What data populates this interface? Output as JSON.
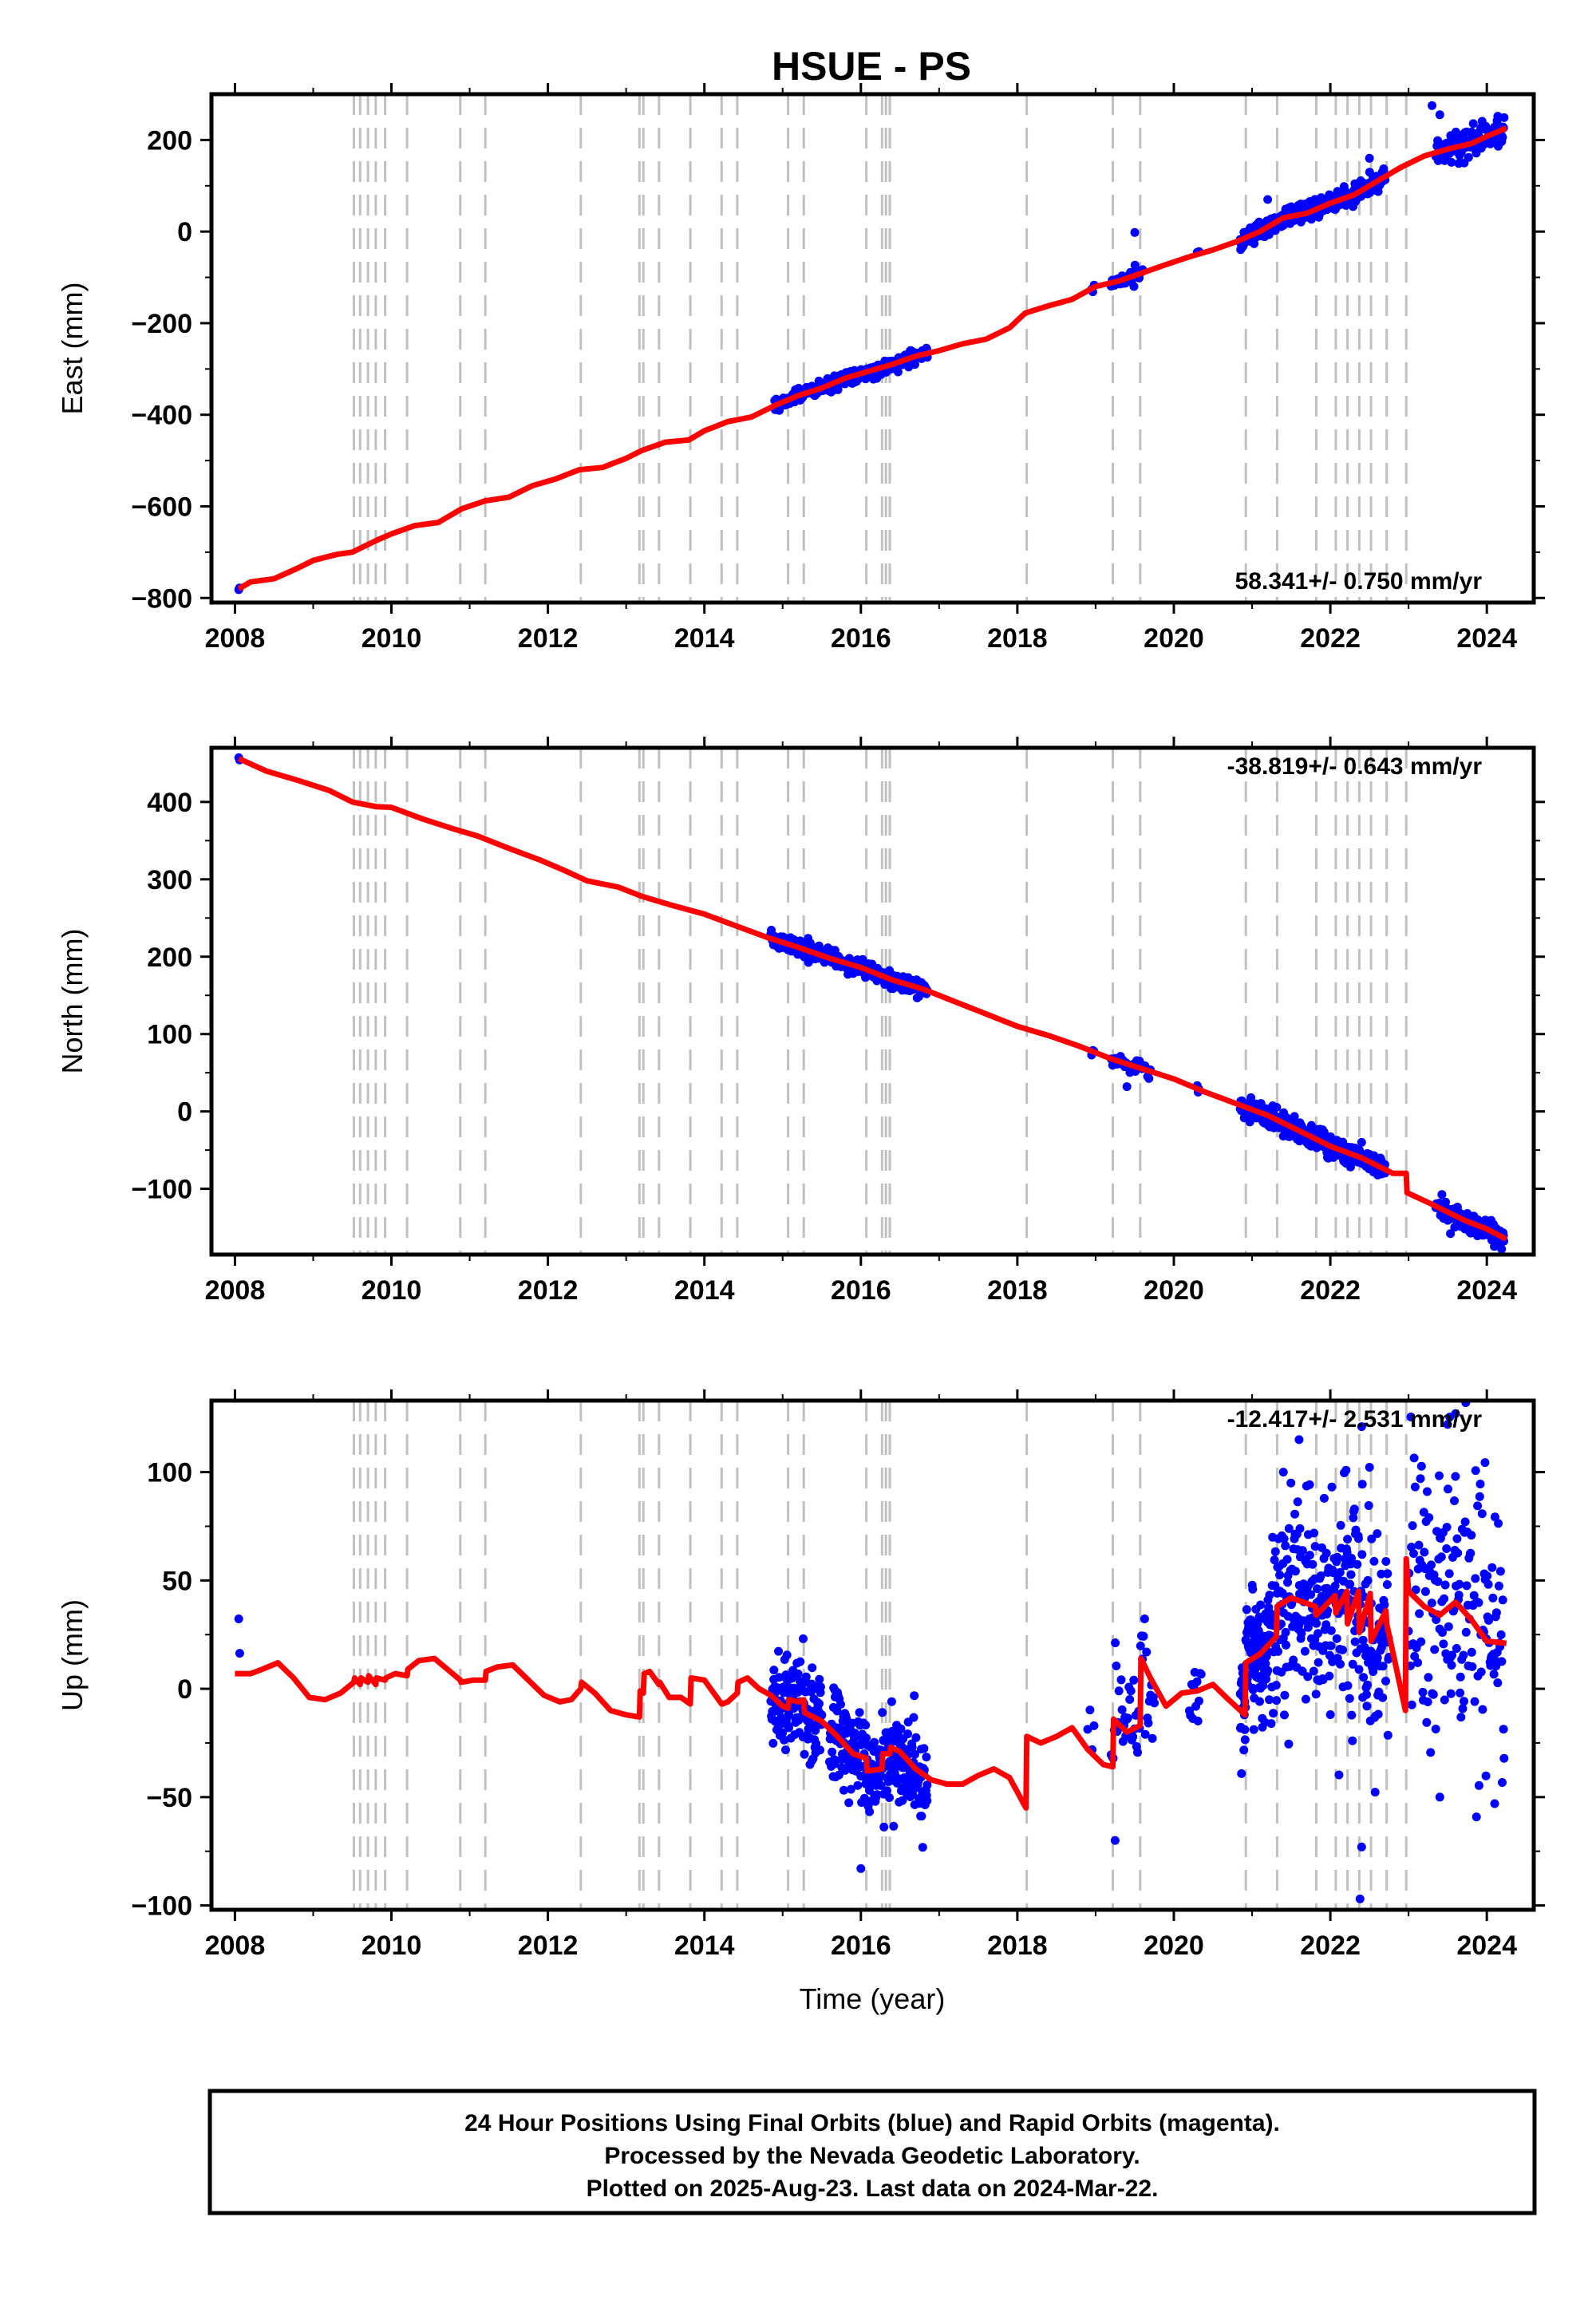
{
  "figure": {
    "title": "HSUE - PS",
    "xlabel": "Time (year)",
    "footer": [
      "24 Hour Positions Using Final Orbits (blue) and Rapid Orbits (magenta).",
      "Processed by the Nevada Geodetic Laboratory.",
      "Plotted on 2025-Aug-23. Last data on 2024-Mar-22."
    ],
    "colors": {
      "data": "#0000ff",
      "model": "#ff0000",
      "event_lines": "#c0c0c0",
      "frame": "#000000"
    }
  },
  "chart_data": [
    {
      "type": "scatter",
      "id": "east",
      "ylabel": "East (mm)",
      "rate": "58.341+/- 0.750 mm/yr",
      "xlim": [
        2007.7,
        2024.6
      ],
      "ylim": [
        -810,
        300
      ],
      "yticks": [
        -800,
        -600,
        -400,
        -200,
        0,
        200
      ],
      "yticklabels": [
        "−800",
        "−600",
        "−400",
        "−200",
        "0",
        "200"
      ],
      "xticks": [
        2008,
        2010,
        2012,
        2014,
        2016,
        2018,
        2020,
        2022,
        2024
      ],
      "event_lines": [
        2009.52,
        2009.6,
        2009.7,
        2009.8,
        2009.92,
        2010.2,
        2010.88,
        2011.2,
        2012.42,
        2013.17,
        2013.22,
        2013.42,
        2013.82,
        2014.22,
        2014.42,
        2015.07,
        2015.27,
        2016.07,
        2016.27,
        2016.32,
        2016.37,
        2018.12,
        2019.22,
        2019.57,
        2020.92,
        2021.32,
        2021.82,
        2022.07,
        2022.22,
        2022.37,
        2022.52,
        2022.72,
        2022.97
      ],
      "series": [
        {
          "kind": "model",
          "x": [
            2008.05,
            2008.2,
            2008.5,
            2008.8,
            2009.0,
            2009.3,
            2009.5,
            2009.8,
            2010.0,
            2010.3,
            2010.6,
            2010.9,
            2011.2,
            2011.5,
            2011.8,
            2012.1,
            2012.4,
            2012.7,
            2013.0,
            2013.2,
            2013.5,
            2013.8,
            2014.0,
            2014.3,
            2014.6,
            2014.9,
            2015.2,
            2015.5,
            2015.8,
            2016.1,
            2016.4,
            2016.7,
            2017.0,
            2017.3,
            2017.6,
            2017.9,
            2018.1,
            2018.4,
            2018.7,
            2019.0,
            2019.3,
            2019.6,
            2019.9,
            2020.2,
            2020.5,
            2020.8,
            2021.1,
            2021.4,
            2021.7,
            2022.0,
            2022.3,
            2022.6,
            2022.9,
            2023.2,
            2023.5,
            2023.8,
            2024.0,
            2024.25
          ],
          "y": [
            -780,
            -765,
            -758,
            -735,
            -718,
            -705,
            -700,
            -675,
            -660,
            -642,
            -635,
            -605,
            -588,
            -580,
            -555,
            -540,
            -520,
            -515,
            -495,
            -478,
            -460,
            -455,
            -435,
            -415,
            -405,
            -380,
            -358,
            -342,
            -320,
            -305,
            -290,
            -272,
            -260,
            -245,
            -235,
            -210,
            -178,
            -162,
            -148,
            -120,
            -108,
            -90,
            -72,
            -55,
            -40,
            -22,
            0,
            30,
            40,
            62,
            80,
            110,
            140,
            165,
            180,
            192,
            208,
            226
          ]
        },
        {
          "kind": "observed",
          "segments": [
            {
              "x0": 2008.05,
              "x1": 2008.06,
              "n": 2,
              "sd": 2,
              "seed": 11
            },
            {
              "x0": 2014.9,
              "x1": 2016.85,
              "n": 320,
              "sd": 8,
              "seed": 12
            },
            {
              "x0": 2018.95,
              "x1": 2018.98,
              "n": 3,
              "sd": 6,
              "seed": 13
            },
            {
              "x0": 2019.2,
              "x1": 2019.6,
              "n": 30,
              "sd": 8,
              "seed": 14
            },
            {
              "x0": 2020.3,
              "x1": 2020.32,
              "n": 3,
              "sd": 6,
              "seed": 15
            },
            {
              "x0": 2020.85,
              "x1": 2022.7,
              "n": 380,
              "sd": 10,
              "seed": 16
            },
            {
              "x0": 2023.35,
              "x1": 2024.22,
              "n": 150,
              "sd": 14,
              "seed": 17
            }
          ],
          "outliers": [
            [
              2019.5,
              -2
            ],
            [
              2023.3,
              275
            ],
            [
              2023.4,
              255
            ],
            [
              2021.2,
              70
            ],
            [
              2022.5,
              160
            ]
          ]
        }
      ]
    },
    {
      "type": "scatter",
      "id": "north",
      "ylabel": "North (mm)",
      "rate": "-38.819+/- 0.643 mm/yr",
      "xlim": [
        2007.7,
        2024.6
      ],
      "ylim": [
        -185,
        470
      ],
      "yticks": [
        -100,
        0,
        100,
        200,
        300,
        400
      ],
      "yticklabels": [
        "−100",
        "0",
        "100",
        "200",
        "300",
        "400"
      ],
      "xticks": [
        2008,
        2010,
        2012,
        2014,
        2016,
        2018,
        2020,
        2022,
        2024
      ],
      "event_lines": [
        2009.52,
        2009.6,
        2009.7,
        2009.8,
        2009.92,
        2010.2,
        2010.88,
        2011.2,
        2012.42,
        2013.17,
        2013.22,
        2013.42,
        2013.82,
        2014.22,
        2014.42,
        2015.07,
        2015.27,
        2016.07,
        2016.27,
        2016.32,
        2016.37,
        2018.12,
        2019.22,
        2019.57,
        2020.92,
        2021.32,
        2021.82,
        2022.07,
        2022.22,
        2022.37,
        2022.52,
        2022.72,
        2022.97
      ],
      "series": [
        {
          "kind": "model",
          "x": [
            2008.05,
            2008.4,
            2008.8,
            2009.2,
            2009.5,
            2009.8,
            2010.0,
            2010.4,
            2010.8,
            2011.1,
            2011.5,
            2011.9,
            2012.2,
            2012.5,
            2012.9,
            2013.2,
            2013.6,
            2014.0,
            2014.4,
            2014.8,
            2015.2,
            2015.6,
            2016.0,
            2016.4,
            2016.8,
            2017.2,
            2017.6,
            2018.0,
            2018.4,
            2018.8,
            2019.2,
            2019.6,
            2020.0,
            2020.4,
            2020.8,
            2021.2,
            2021.6,
            2022.0,
            2022.4,
            2022.8,
            2022.97,
            2022.98,
            2023.3,
            2023.7,
            2024.0,
            2024.25
          ],
          "y": [
            456,
            440,
            428,
            415,
            400,
            394,
            393,
            378,
            365,
            356,
            340,
            325,
            312,
            298,
            290,
            278,
            266,
            255,
            240,
            225,
            212,
            198,
            186,
            170,
            158,
            142,
            126,
            110,
            98,
            84,
            68,
            55,
            42,
            25,
            10,
            -5,
            -25,
            -45,
            -60,
            -80,
            -80,
            -105,
            -120,
            -140,
            -152,
            -165
          ]
        },
        {
          "kind": "observed",
          "segments": [
            {
              "x0": 2008.05,
              "x1": 2008.06,
              "n": 2,
              "sd": 2,
              "seed": 21
            },
            {
              "x0": 2014.85,
              "x1": 2016.85,
              "n": 320,
              "sd": 5,
              "seed": 22
            },
            {
              "x0": 2018.95,
              "x1": 2018.98,
              "n": 3,
              "sd": 4,
              "seed": 23
            },
            {
              "x0": 2019.2,
              "x1": 2019.7,
              "n": 30,
              "sd": 6,
              "seed": 24
            },
            {
              "x0": 2020.3,
              "x1": 2020.32,
              "n": 3,
              "sd": 4,
              "seed": 25
            },
            {
              "x0": 2020.85,
              "x1": 2022.7,
              "n": 380,
              "sd": 7,
              "seed": 26
            },
            {
              "x0": 2023.35,
              "x1": 2024.22,
              "n": 150,
              "sd": 7,
              "seed": 27
            }
          ],
          "outliers": [
            [
              2019.4,
              32
            ],
            [
              2022.4,
              -40
            ]
          ]
        }
      ]
    },
    {
      "type": "scatter",
      "id": "up",
      "ylabel": "Up (mm)",
      "rate": "-12.417+/- 2.531 mm/yr",
      "xlim": [
        2007.7,
        2024.6
      ],
      "ylim": [
        -102,
        133
      ],
      "yticks": [
        -100,
        -50,
        0,
        50,
        100
      ],
      "yticklabels": [
        "−100",
        "−50",
        "0",
        "50",
        "100"
      ],
      "xticks": [
        2008,
        2010,
        2012,
        2014,
        2016,
        2018,
        2020,
        2022,
        2024
      ],
      "event_lines": [
        2009.52,
        2009.6,
        2009.7,
        2009.8,
        2009.92,
        2010.2,
        2010.88,
        2011.2,
        2012.42,
        2013.17,
        2013.22,
        2013.42,
        2013.82,
        2014.22,
        2014.42,
        2015.07,
        2015.27,
        2016.07,
        2016.27,
        2016.32,
        2016.37,
        2018.12,
        2019.22,
        2019.57,
        2020.92,
        2021.32,
        2021.82,
        2022.07,
        2022.22,
        2022.37,
        2022.52,
        2022.72,
        2022.97
      ],
      "series": [
        {
          "kind": "model",
          "x": [
            2008.0,
            2008.2,
            2008.35,
            2008.55,
            2008.75,
            2008.95,
            2009.15,
            2009.35,
            2009.52,
            2009.53,
            2009.6,
            2009.61,
            2009.7,
            2009.71,
            2009.8,
            2009.81,
            2009.92,
            2009.93,
            2010.05,
            2010.2,
            2010.21,
            2010.35,
            2010.55,
            2010.75,
            2010.88,
            2010.89,
            2011.05,
            2011.2,
            2011.21,
            2011.35,
            2011.55,
            2011.75,
            2011.95,
            2012.15,
            2012.3,
            2012.42,
            2012.43,
            2012.6,
            2012.8,
            2013.0,
            2013.17,
            2013.18,
            2013.22,
            2013.23,
            2013.3,
            2013.42,
            2013.43,
            2013.55,
            2013.7,
            2013.82,
            2013.83,
            2014.0,
            2014.22,
            2014.23,
            2014.3,
            2014.42,
            2014.43,
            2014.55,
            2014.7,
            2014.85,
            2015.0,
            2015.07,
            2015.08,
            2015.2,
            2015.27,
            2015.28,
            2015.5,
            2015.7,
            2015.9,
            2016.07,
            2016.08,
            2016.27,
            2016.28,
            2016.37,
            2016.38,
            2016.5,
            2016.7,
            2016.9,
            2017.1,
            2017.3,
            2017.5,
            2017.7,
            2017.9,
            2018.11,
            2018.12,
            2018.3,
            2018.5,
            2018.7,
            2018.9,
            2019.1,
            2019.22,
            2019.23,
            2019.4,
            2019.57,
            2019.58,
            2019.7,
            2019.9,
            2020.1,
            2020.3,
            2020.5,
            2020.7,
            2020.91,
            2020.92,
            2021.1,
            2021.31,
            2021.32,
            2021.5,
            2021.81,
            2021.82,
            2022.06,
            2022.07,
            2022.21,
            2022.22,
            2022.36,
            2022.37,
            2022.51,
            2022.52,
            2022.71,
            2022.72,
            2022.96,
            2022.97,
            2023.0,
            2023.2,
            2023.4,
            2023.6,
            2023.8,
            2024.0,
            2024.25
          ],
          "y": [
            7,
            7,
            9,
            12,
            5,
            -4,
            -5,
            -2,
            3,
            5,
            2,
            5,
            3,
            6,
            2,
            5,
            4,
            5,
            7,
            6,
            9,
            13,
            14,
            8,
            4,
            3,
            4,
            4,
            8,
            10,
            11,
            4,
            -3,
            -6,
            -5,
            0,
            3,
            -2,
            -10,
            -12,
            -13,
            -1,
            -2,
            7,
            8,
            2,
            3,
            -4,
            -4,
            -7,
            5,
            4,
            -7,
            -7,
            -6,
            -2,
            3,
            5,
            0,
            -3,
            -8,
            -9,
            -5,
            -6,
            -5,
            -11,
            -15,
            -22,
            -30,
            -32,
            -38,
            -37,
            -30,
            -30,
            -27,
            -29,
            -37,
            -42,
            -44,
            -44,
            -40,
            -37,
            -41,
            -55,
            -22,
            -25,
            -22,
            -18,
            -28,
            -35,
            -36,
            -14,
            -20,
            -17,
            14,
            5,
            -8,
            -2,
            -1,
            2,
            -5,
            -12,
            12,
            16,
            24,
            38,
            42,
            38,
            34,
            43,
            35,
            45,
            30,
            45,
            26,
            44,
            22,
            36,
            30,
            -10,
            60,
            45,
            38,
            34,
            40,
            32,
            22,
            21
          ]
        },
        {
          "kind": "observed",
          "segments": [
            {
              "x0": 2008.05,
              "x1": 2008.06,
              "n": 2,
              "sd": 12,
              "seed": 31
            },
            {
              "x0": 2014.85,
              "x1": 2015.5,
              "n": 150,
              "sd": 12,
              "seed": 32
            },
            {
              "x0": 2015.6,
              "x1": 2016.85,
              "n": 260,
              "sd": 11,
              "seed": 33
            },
            {
              "x0": 2018.9,
              "x1": 2018.98,
              "n": 4,
              "sd": 8,
              "seed": 34
            },
            {
              "x0": 2019.2,
              "x1": 2019.75,
              "n": 45,
              "sd": 20,
              "seed": 35
            },
            {
              "x0": 2020.2,
              "x1": 2020.35,
              "n": 12,
              "sd": 8,
              "seed": 36
            },
            {
              "x0": 2020.85,
              "x1": 2021.2,
              "n": 110,
              "sd": 14,
              "seed": 37
            },
            {
              "x0": 2021.2,
              "x1": 2022.75,
              "n": 320,
              "sd": 26,
              "seed": 38
            },
            {
              "x0": 2023.0,
              "x1": 2024.22,
              "n": 170,
              "sd": 30,
              "seed": 39
            }
          ],
          "outliers": [
            [
              2016.0,
              -83
            ],
            [
              2019.25,
              -70
            ],
            [
              2022.4,
              -73
            ],
            [
              2022.38,
              -97
            ],
            [
              2021.6,
              115
            ],
            [
              2022.4,
              121
            ],
            [
              2023.6,
              127
            ],
            [
              2023.5,
              122
            ],
            [
              2023.4,
              -50
            ],
            [
              2024.1,
              -53
            ],
            [
              2021.4,
              100
            ]
          ]
        }
      ]
    }
  ]
}
